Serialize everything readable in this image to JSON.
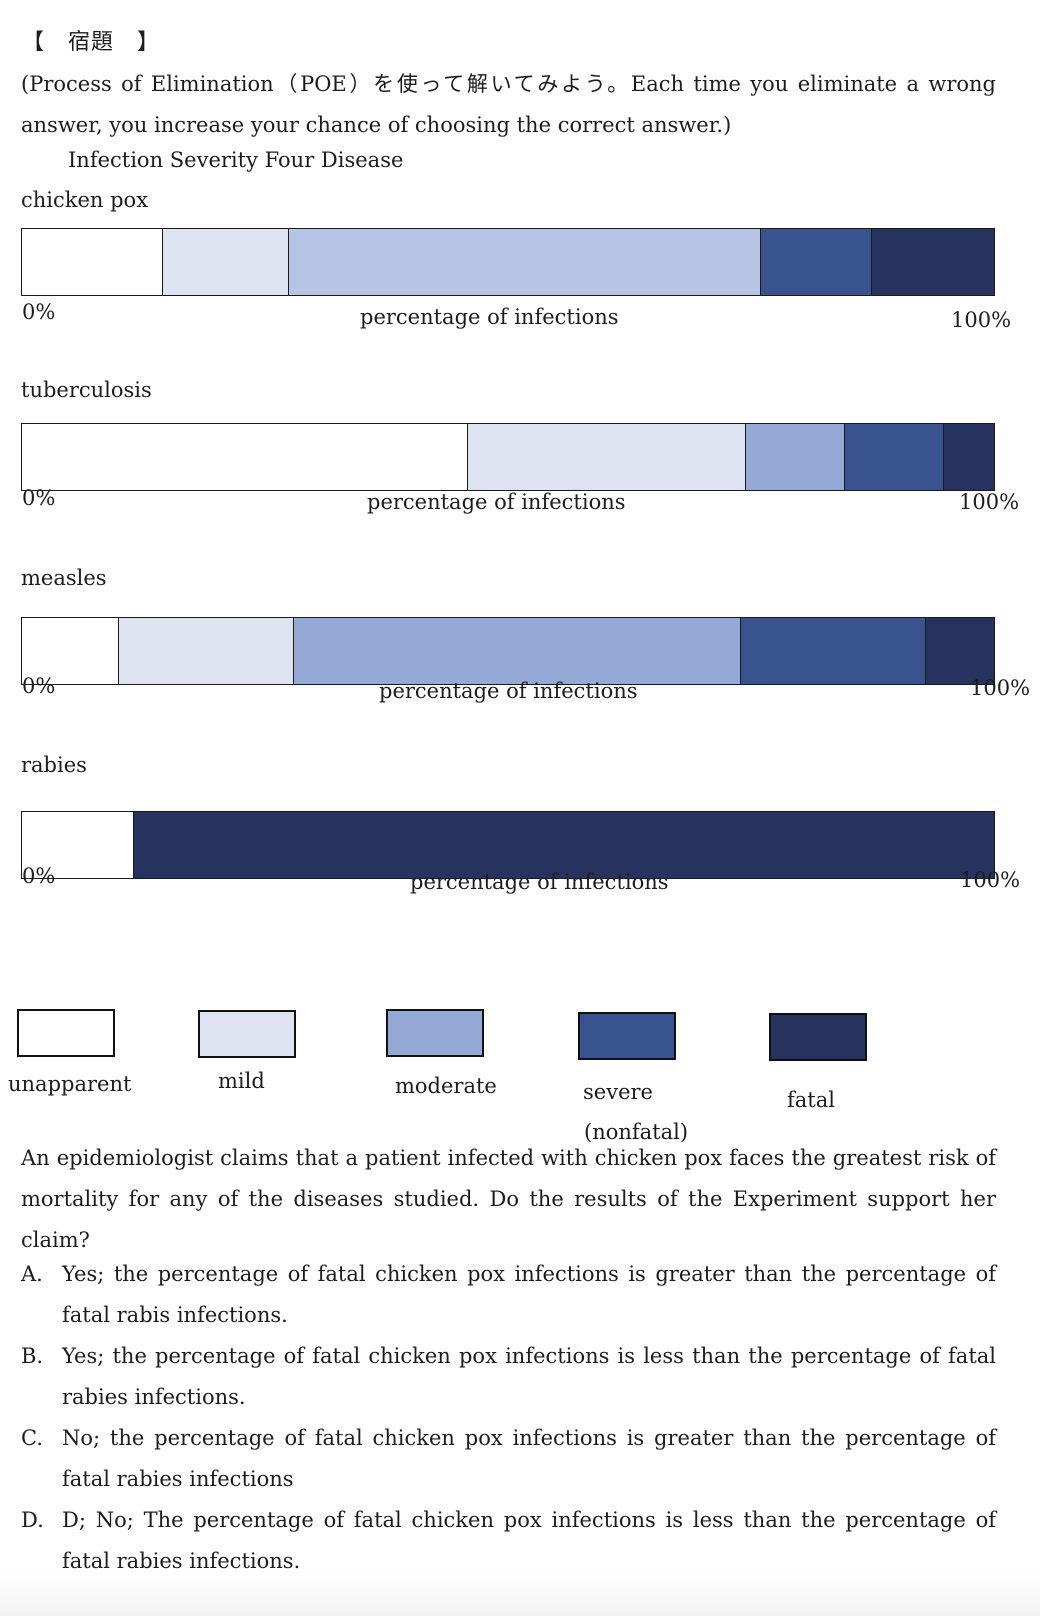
{
  "heading": "【　宿題　】",
  "intro": "(Process of Elimination（POE）を使って解いてみよう。Each time you eliminate a wrong answer, you increase your chance of choosing the correct answer.)",
  "chart_title": "Infection Severity Four Disease",
  "colors": {
    "unapparent": "#ffffff",
    "mild": "#dde3f1",
    "moderate": "#95a9d7",
    "moderate_chicken_pox": "#b7c4e4",
    "severe": "#39538f",
    "fatal": "#26335f"
  },
  "chart_data": [
    {
      "type": "bar",
      "orientation": "horizontal-stacked",
      "title": "chicken pox",
      "xlabel": "percentage of infections",
      "xlim": [
        0,
        100
      ],
      "tick_labels": [
        "0%",
        "100%"
      ],
      "categories": [
        "unapparent",
        "mild",
        "moderate",
        "severe (nonfatal)",
        "fatal"
      ],
      "values": [
        14.5,
        13,
        48.5,
        11.5,
        12.5
      ]
    },
    {
      "type": "bar",
      "orientation": "horizontal-stacked",
      "title": "tuberculosis",
      "xlabel": "percentage of infections",
      "xlim": [
        0,
        100
      ],
      "tick_labels": [
        "0%",
        "100%"
      ],
      "categories": [
        "unapparent",
        "mild",
        "moderate",
        "severe (nonfatal)",
        "fatal"
      ],
      "values": [
        45,
        28,
        10,
        10,
        5
      ]
    },
    {
      "type": "bar",
      "orientation": "horizontal-stacked",
      "title": "measles",
      "xlabel": "percentage of infections",
      "xlim": [
        0,
        100
      ],
      "tick_labels": [
        "0%",
        "100%"
      ],
      "categories": [
        "unapparent",
        "mild",
        "moderate",
        "severe (nonfatal)",
        "fatal"
      ],
      "values": [
        10,
        18,
        46,
        19,
        7
      ]
    },
    {
      "type": "bar",
      "orientation": "horizontal-stacked",
      "title": "rabies",
      "xlabel": "percentage of infections",
      "xlim": [
        0,
        100
      ],
      "tick_labels": [
        "0%",
        "100%"
      ],
      "categories": [
        "unapparent",
        "mild",
        "moderate",
        "severe (nonfatal)",
        "fatal"
      ],
      "values": [
        11.5,
        0,
        0,
        0,
        88.5
      ]
    }
  ],
  "legend": [
    {
      "label": "unapparent",
      "sub": "",
      "color_key": "unapparent"
    },
    {
      "label": "mild",
      "sub": "",
      "color_key": "mild"
    },
    {
      "label": "moderate",
      "sub": "",
      "color_key": "moderate"
    },
    {
      "label": "severe",
      "sub": "(nonfatal)",
      "color_key": "severe"
    },
    {
      "label": "fatal",
      "sub": "",
      "color_key": "fatal"
    }
  ],
  "question": "An epidemiologist claims that a patient infected with chicken pox faces the greatest risk of mortality for any of the diseases studied. Do the results of the Experiment support her claim?",
  "options": [
    {
      "letter": "A.",
      "text": "Yes; the percentage of fatal chicken pox infections is greater than the percentage of fatal rabis infections."
    },
    {
      "letter": "B.",
      "text": "Yes; the percentage of fatal chicken pox infections is less than the percentage of fatal rabies infections."
    },
    {
      "letter": "C.",
      "text": "No; the percentage of fatal chicken pox infections is greater than the percentage of fatal rabies infections"
    },
    {
      "letter": "D.",
      "text": "D; No; The percentage of fatal chicken pox infections is less than the percentage of fatal rabies infections."
    }
  ]
}
